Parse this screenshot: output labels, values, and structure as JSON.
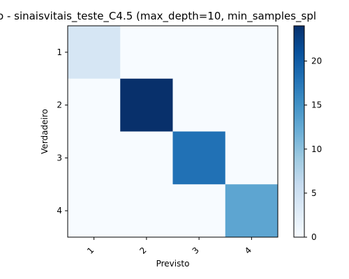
{
  "chart_data": {
    "type": "heatmap",
    "title": "o - sinaisvitais_teste_C4.5 (max_depth=10, min_samples_spl",
    "xlabel": "Previsto",
    "ylabel": "Verdadeiro",
    "x_categories": [
      "1",
      "2",
      "3",
      "4"
    ],
    "y_categories": [
      "1",
      "2",
      "3",
      "4"
    ],
    "matrix": [
      [
        4,
        0,
        0,
        0
      ],
      [
        0,
        24,
        0,
        0
      ],
      [
        0,
        0,
        18,
        0
      ],
      [
        0,
        0,
        0,
        13
      ]
    ],
    "colormap": "Blues",
    "vmin": 0,
    "vmax": 24,
    "colorbar_ticks": [
      "0",
      "5",
      "10",
      "15",
      "20"
    ],
    "colorbar_tick_values": [
      0,
      5,
      10,
      15,
      20
    ]
  }
}
